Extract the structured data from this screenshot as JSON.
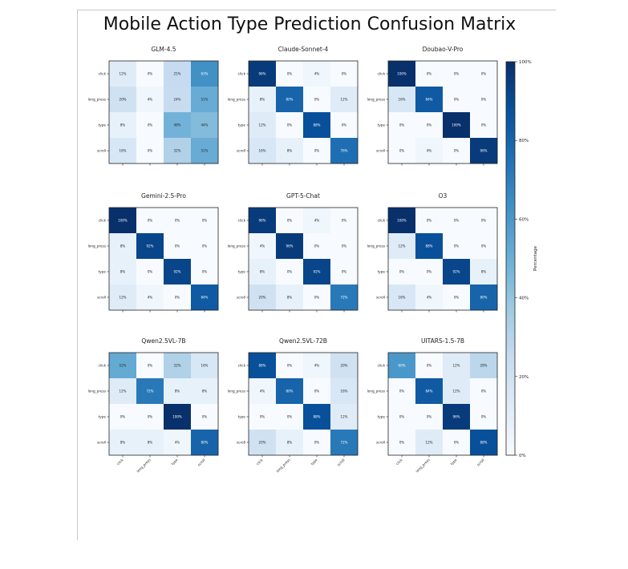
{
  "title": "Mobile Action Type Prediction Confusion Matrix",
  "chart_data": {
    "type": "heatmap",
    "title": "Mobile Action Type Prediction Confusion Matrix",
    "labels": [
      "click",
      "long_press",
      "type",
      "scroll"
    ],
    "colorbar": {
      "label": "Percentage",
      "range": [
        0,
        100
      ],
      "ticks": [
        "0%",
        "20%",
        "40%",
        "60%",
        "80%",
        "100%"
      ],
      "colormap": "Blues"
    },
    "matrices": [
      {
        "name": "GLM-4.5",
        "values": [
          [
            12,
            0,
            25,
            63
          ],
          [
            20,
            4,
            24,
            51
          ],
          [
            8,
            0,
            48,
            44
          ],
          [
            16,
            0,
            32,
            51
          ]
        ]
      },
      {
        "name": "Claude-Sonnet-4",
        "values": [
          [
            96,
            0,
            4,
            0
          ],
          [
            8,
            80,
            0,
            12
          ],
          [
            12,
            0,
            88,
            0
          ],
          [
            16,
            8,
            0,
            76
          ]
        ]
      },
      {
        "name": "Doubao-V-Pro",
        "values": [
          [
            100,
            0,
            0,
            0
          ],
          [
            16,
            84,
            0,
            0
          ],
          [
            0,
            0,
            100,
            0
          ],
          [
            0,
            4,
            0,
            96
          ]
        ]
      },
      {
        "name": "Gemini-2.5-Pro",
        "values": [
          [
            100,
            0,
            0,
            0
          ],
          [
            8,
            92,
            0,
            0
          ],
          [
            8,
            0,
            92,
            0
          ],
          [
            12,
            4,
            0,
            84
          ]
        ]
      },
      {
        "name": "GPT-5-Chat",
        "values": [
          [
            96,
            0,
            4,
            0
          ],
          [
            4,
            96,
            0,
            0
          ],
          [
            8,
            0,
            92,
            0
          ],
          [
            20,
            8,
            0,
            72
          ]
        ]
      },
      {
        "name": "O3",
        "values": [
          [
            100,
            0,
            0,
            0
          ],
          [
            12,
            88,
            0,
            0
          ],
          [
            0,
            0,
            92,
            8
          ],
          [
            16,
            4,
            0,
            80
          ]
        ]
      },
      {
        "name": "Qwen2.5VL-7B",
        "values": [
          [
            52,
            0,
            32,
            16
          ],
          [
            12,
            72,
            8,
            8
          ],
          [
            0,
            0,
            100,
            0
          ],
          [
            8,
            8,
            4,
            80
          ]
        ]
      },
      {
        "name": "Qwen2.5VL-72B",
        "values": [
          [
            88,
            0,
            4,
            20
          ],
          [
            4,
            80,
            0,
            16
          ],
          [
            0,
            0,
            88,
            12
          ],
          [
            20,
            8,
            0,
            72
          ]
        ]
      },
      {
        "name": "UITARS-1.5-7B",
        "values": [
          [
            60,
            0,
            12,
            28
          ],
          [
            0,
            84,
            12,
            0
          ],
          [
            0,
            0,
            96,
            0
          ],
          [
            0,
            12,
            0,
            88
          ]
        ]
      }
    ]
  }
}
